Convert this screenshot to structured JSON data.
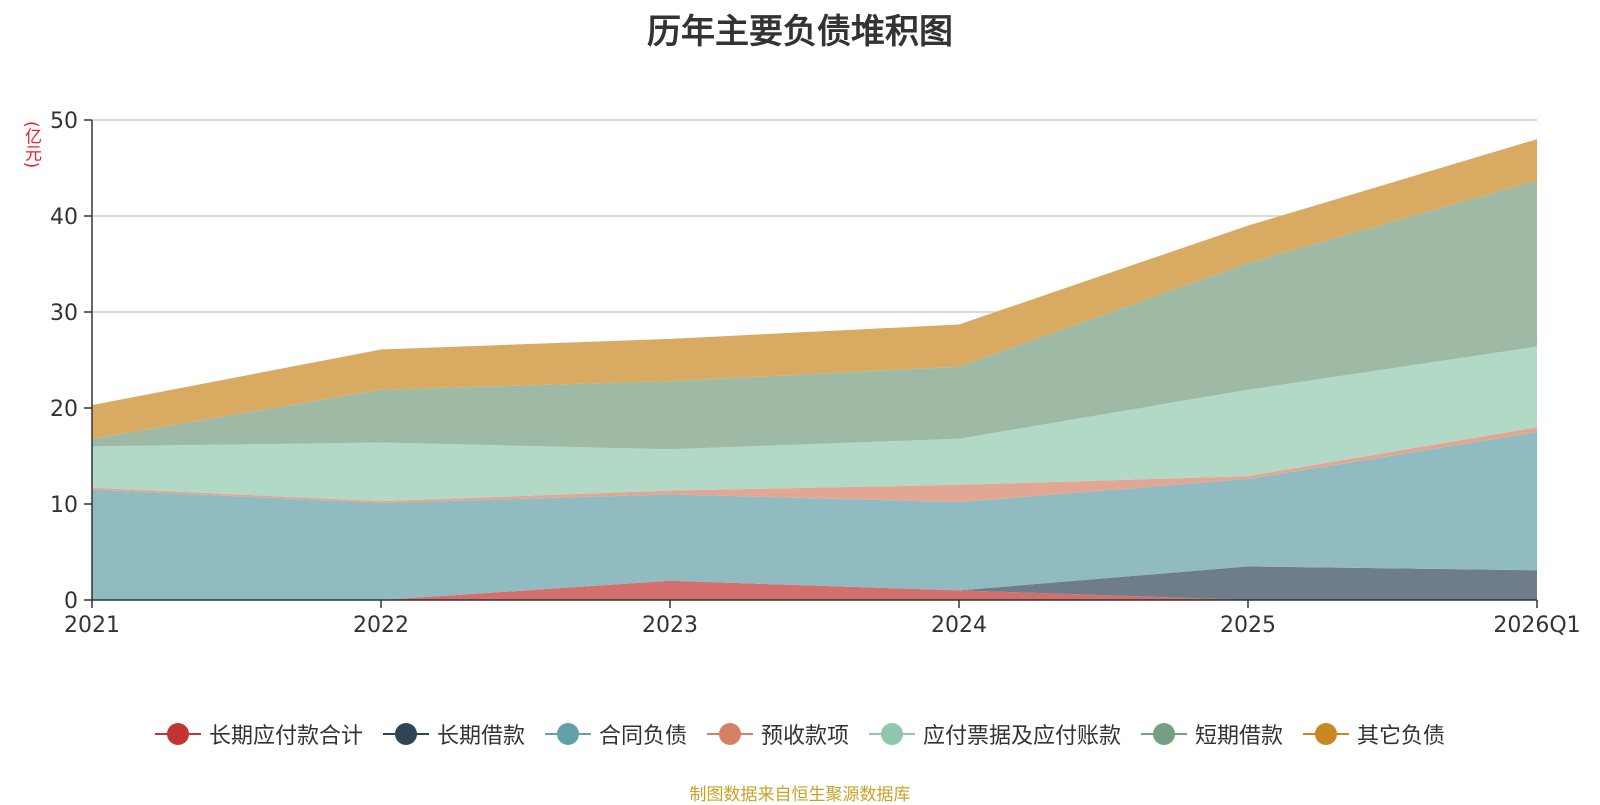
{
  "chart_data": {
    "type": "area",
    "stacked": true,
    "title": "历年主要负债堆积图",
    "ylabel": "(亿元)",
    "categories": [
      "2021",
      "2022",
      "2023",
      "2024",
      "2025",
      "2026Q1"
    ],
    "ylim": [
      0,
      50
    ],
    "yticks": [
      0,
      10,
      20,
      30,
      40,
      50
    ],
    "grid": true,
    "legend_position": "bottom",
    "series": [
      {
        "name": "长期应付款合计",
        "color": "#c23531",
        "fill": "#d36f6c",
        "values": [
          0,
          0,
          2.0,
          1.0,
          0,
          0
        ]
      },
      {
        "name": "长期借款",
        "color": "#2f4554",
        "fill": "#6f7d88",
        "values": [
          0,
          0,
          0,
          0,
          3.5,
          3.1
        ]
      },
      {
        "name": "合同负债",
        "color": "#61a0a8",
        "fill": "#90bbc1",
        "values": [
          11.5,
          10.1,
          9.0,
          9.2,
          9.1,
          14.4
        ]
      },
      {
        "name": "预收款项",
        "color": "#d48265",
        "fill": "#e2a794",
        "values": [
          0.2,
          0.2,
          0.4,
          1.8,
          0.3,
          0.5
        ]
      },
      {
        "name": "应付票据及应付账款",
        "color": "#91c7ae",
        "fill": "#b2d8c6",
        "values": [
          4.3,
          6.1,
          4.3,
          4.8,
          9.0,
          8.4
        ]
      },
      {
        "name": "短期借款",
        "color": "#749f83",
        "fill": "#9eb9a4",
        "values": [
          0.8,
          5.5,
          7.1,
          7.5,
          13.2,
          17.3
        ]
      },
      {
        "name": "其它负债",
        "color": "#ca8622",
        "fill": "#d8aa62",
        "values": [
          3.5,
          4.2,
          4.4,
          4.4,
          3.9,
          4.3
        ]
      }
    ]
  },
  "source": "制图数据来自恒生聚源数据库"
}
